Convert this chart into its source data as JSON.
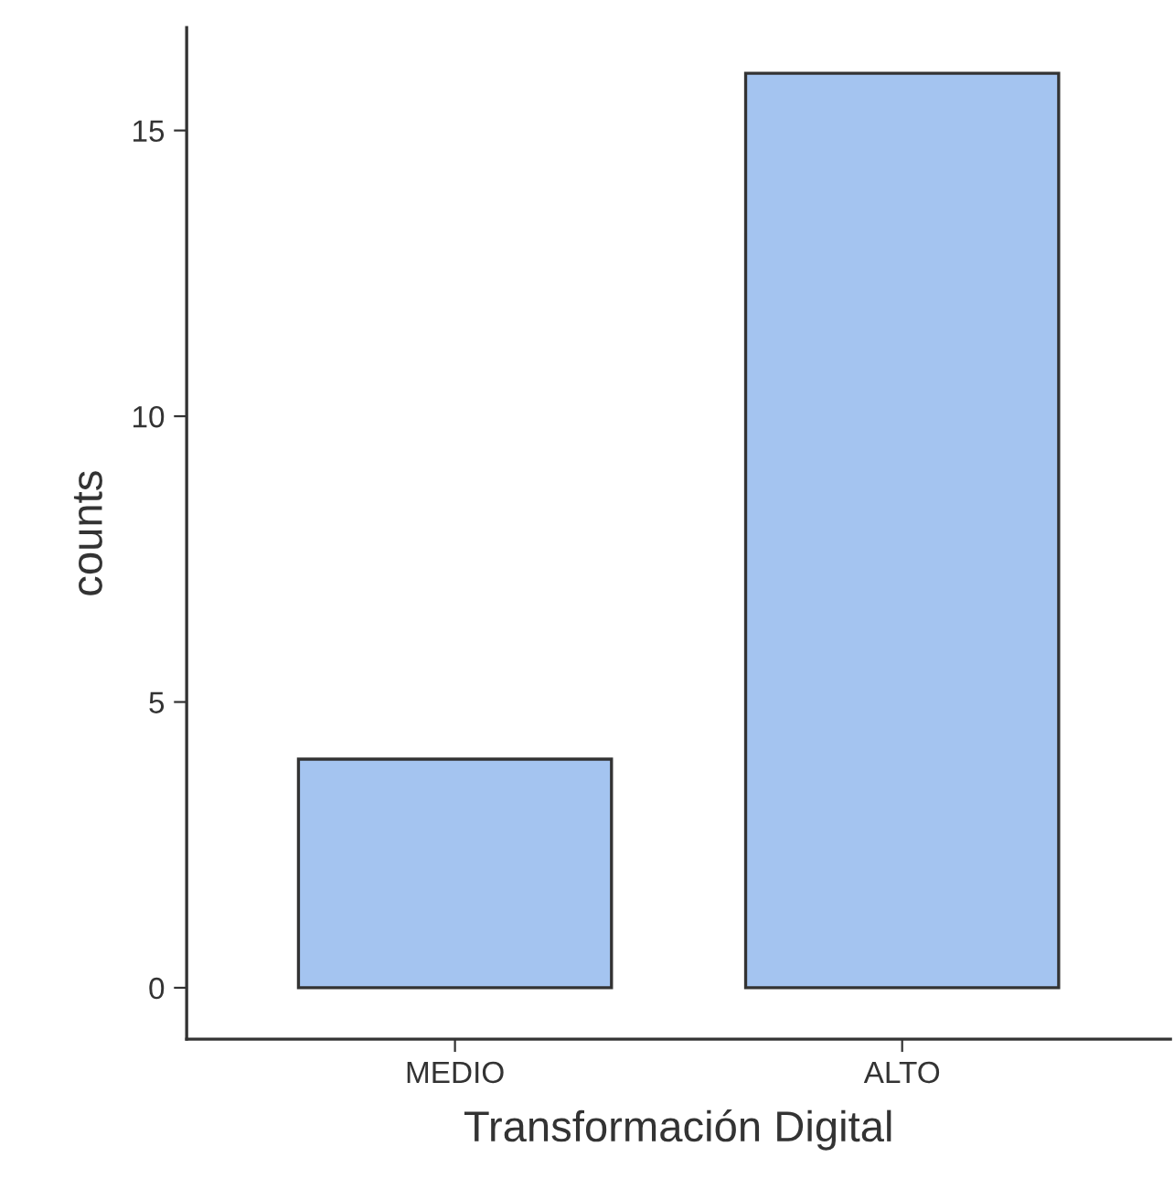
{
  "chart_data": {
    "type": "bar",
    "xlabel": "Transformación Digital",
    "ylabel": "counts",
    "categories": [
      "MEDIO",
      "ALTO"
    ],
    "values": [
      4,
      16
    ],
    "color": "#a4c4f0",
    "ylim": [
      -0.9,
      16.8
    ],
    "yticks": [
      0,
      5,
      10,
      15
    ],
    "grid": false,
    "legend": false
  }
}
